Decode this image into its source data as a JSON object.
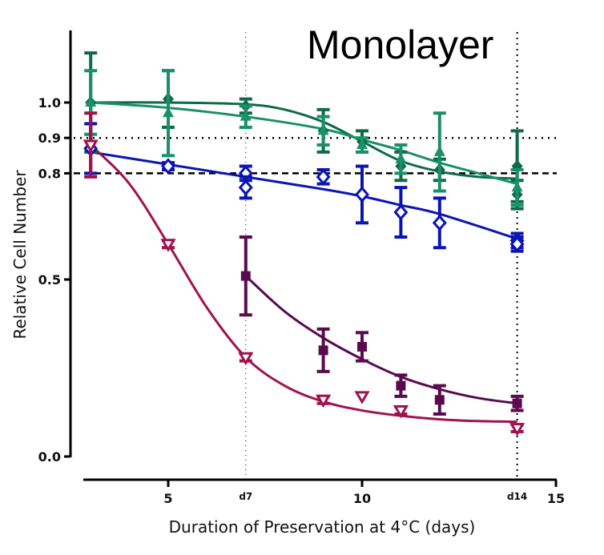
{
  "chart_data": {
    "type": "scatter",
    "title": "Monolayer",
    "xlabel": "Duration of Preservation at 4°C (days)",
    "ylabel": "Relative Cell Number",
    "xlim": [
      2.8,
      15
    ],
    "ylim": [
      0.0,
      1.0
    ],
    "x_ticks": [
      {
        "value": 5,
        "label": "5"
      },
      {
        "value": 10,
        "label": "10"
      },
      {
        "value": 15,
        "label": "15"
      }
    ],
    "x_markers": [
      {
        "value": 7,
        "label": "d7"
      },
      {
        "value": 14,
        "label": "d14"
      }
    ],
    "y_ticks": [
      {
        "value": 0.0,
        "label": "0.0"
      },
      {
        "value": 0.5,
        "label": "0.5"
      },
      {
        "value": 0.8,
        "label": "0.8"
      },
      {
        "value": 0.9,
        "label": "0.9"
      },
      {
        "value": 1.0,
        "label": "1.0"
      }
    ],
    "reference_lines": [
      {
        "axis": "y",
        "value": 0.9,
        "style": "dotted"
      },
      {
        "axis": "y",
        "value": 0.8,
        "style": "dashed"
      },
      {
        "axis": "x",
        "value": 7,
        "style": "dotted-light"
      },
      {
        "axis": "x",
        "value": 14,
        "style": "dotted"
      }
    ],
    "series": [
      {
        "name": "series-dark-green",
        "color": "#0e6b45",
        "marker": "diamond-filled",
        "x": [
          3,
          5,
          7,
          9,
          10,
          11,
          12,
          14,
          14
        ],
        "y": [
          1.0,
          1.01,
          0.99,
          0.92,
          0.89,
          0.82,
          0.81,
          0.82,
          0.74
        ],
        "err": [
          0.14,
          0.08,
          0.02,
          0.06,
          0.03,
          0.04,
          0.03,
          0.1,
          0.04
        ],
        "fit": [
          [
            3,
            1.0
          ],
          [
            5,
            1.0
          ],
          [
            7,
            0.995
          ],
          [
            8,
            0.98
          ],
          [
            9,
            0.945
          ],
          [
            10,
            0.89
          ],
          [
            11,
            0.835
          ],
          [
            12,
            0.805
          ],
          [
            13,
            0.79
          ],
          [
            14,
            0.785
          ]
        ]
      },
      {
        "name": "series-teal",
        "color": "#1a9068",
        "marker": "triangle-up-filled",
        "x": [
          3,
          5,
          7,
          9,
          10,
          11,
          12,
          14
        ],
        "y": [
          1.0,
          0.97,
          0.96,
          0.92,
          0.88,
          0.84,
          0.86,
          0.76
        ],
        "err": [
          0.09,
          0.12,
          0.03,
          0.04,
          0.02,
          0.04,
          0.11,
          0.05
        ],
        "fit": [
          [
            3,
            1.0
          ],
          [
            5,
            0.985
          ],
          [
            7,
            0.96
          ],
          [
            9,
            0.925
          ],
          [
            10,
            0.895
          ],
          [
            11,
            0.865
          ],
          [
            12,
            0.83
          ],
          [
            13,
            0.8
          ],
          [
            14,
            0.77
          ]
        ]
      },
      {
        "name": "series-blue",
        "color": "#0a14b4",
        "marker": "diamond-open",
        "x": [
          3,
          5,
          7,
          7,
          9,
          10,
          11,
          12,
          14,
          14
        ],
        "y": [
          0.87,
          0.82,
          0.8,
          0.76,
          0.79,
          0.74,
          0.69,
          0.66,
          0.61,
          0.6
        ],
        "err": [
          0.07,
          0.01,
          0.02,
          0.03,
          0.02,
          0.08,
          0.07,
          0.07,
          0.02,
          0.02
        ],
        "fit": [
          [
            3,
            0.86
          ],
          [
            5,
            0.825
          ],
          [
            7,
            0.79
          ],
          [
            9,
            0.755
          ],
          [
            10,
            0.735
          ],
          [
            11,
            0.71
          ],
          [
            12,
            0.685
          ],
          [
            14,
            0.615
          ]
        ]
      },
      {
        "name": "series-purple",
        "color": "#5a0a4e",
        "marker": "square-filled",
        "x": [
          7,
          9,
          10,
          11,
          12,
          14
        ],
        "y": [
          0.51,
          0.3,
          0.31,
          0.2,
          0.16,
          0.15
        ],
        "err": [
          0.11,
          0.06,
          0.04,
          0.03,
          0.04,
          0.02
        ],
        "fit": [
          [
            7,
            0.51
          ],
          [
            8,
            0.41
          ],
          [
            9,
            0.335
          ],
          [
            10,
            0.275
          ],
          [
            11,
            0.225
          ],
          [
            12,
            0.19
          ],
          [
            13,
            0.165
          ],
          [
            14,
            0.15
          ]
        ]
      },
      {
        "name": "series-crimson",
        "color": "#a0124e",
        "marker": "triangle-down-open",
        "x": [
          3,
          5,
          7,
          9,
          10,
          11,
          14
        ],
        "y": [
          0.88,
          0.6,
          0.28,
          0.16,
          0.17,
          0.13,
          0.08
        ],
        "err": [
          0.09,
          0.01,
          0.01,
          0.01,
          0.0,
          0.01,
          0.01
        ],
        "fit": [
          [
            3,
            0.88
          ],
          [
            4,
            0.77
          ],
          [
            5,
            0.6
          ],
          [
            6,
            0.42
          ],
          [
            7,
            0.28
          ],
          [
            8,
            0.2
          ],
          [
            9,
            0.155
          ],
          [
            10,
            0.13
          ],
          [
            11,
            0.115
          ],
          [
            12,
            0.105
          ],
          [
            13,
            0.1
          ],
          [
            14,
            0.098
          ]
        ]
      }
    ]
  }
}
